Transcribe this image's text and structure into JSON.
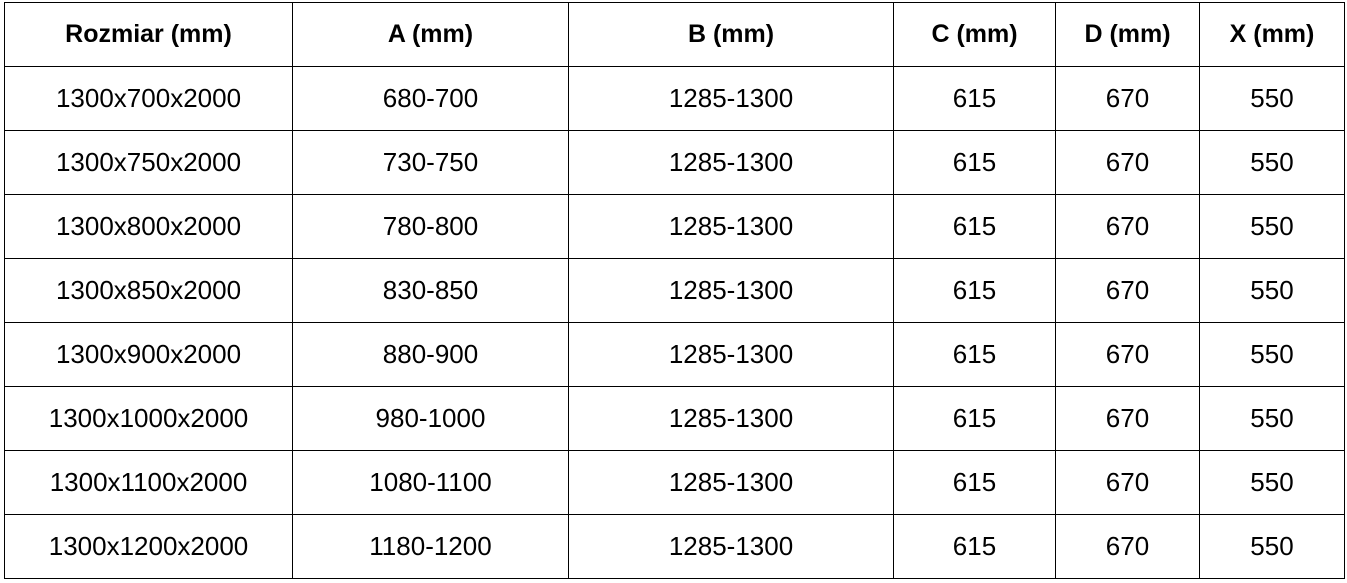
{
  "table": {
    "headers": [
      "Rozmiar (mm)",
      "A (mm)",
      "B (mm)",
      "C (mm)",
      "D (mm)",
      "X (mm)"
    ],
    "rows": [
      [
        "1300x700x2000",
        "680-700",
        "1285-1300",
        "615",
        "670",
        "550"
      ],
      [
        "1300x750x2000",
        "730-750",
        "1285-1300",
        "615",
        "670",
        "550"
      ],
      [
        "1300x800x2000",
        "780-800",
        "1285-1300",
        "615",
        "670",
        "550"
      ],
      [
        "1300x850x2000",
        "830-850",
        "1285-1300",
        "615",
        "670",
        "550"
      ],
      [
        "1300x900x2000",
        "880-900",
        "1285-1300",
        "615",
        "670",
        "550"
      ],
      [
        "1300x1000x2000",
        "980-1000",
        "1285-1300",
        "615",
        "670",
        "550"
      ],
      [
        "1300x1100x2000",
        "1080-1100",
        "1285-1300",
        "615",
        "670",
        "550"
      ],
      [
        "1300x1200x2000",
        "1180-1200",
        "1285-1300",
        "615",
        "670",
        "550"
      ]
    ]
  }
}
